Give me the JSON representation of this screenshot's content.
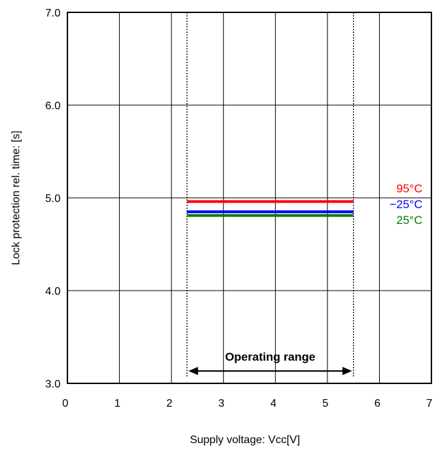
{
  "chart_data": {
    "type": "line",
    "title": "",
    "xlabel": "Supply voltage: Vcc[V]",
    "ylabel": "Lock protection rel. time: [s]",
    "xlim": [
      0,
      7
    ],
    "ylim": [
      3.0,
      7.0
    ],
    "x_ticks": [
      "0",
      "1",
      "2",
      "3",
      "4",
      "5",
      "6",
      "7"
    ],
    "y_ticks": [
      "3.0",
      "4.0",
      "5.0",
      "6.0",
      "7.0"
    ],
    "grid": true,
    "series": [
      {
        "name": "95°C",
        "color": "#ff0000",
        "x": [
          2.3,
          5.5
        ],
        "y": [
          4.96,
          4.96
        ]
      },
      {
        "name": "−25°C",
        "color": "#0000ff",
        "x": [
          2.3,
          5.5
        ],
        "y": [
          4.85,
          4.85
        ]
      },
      {
        "name": "25°C",
        "color": "#008000",
        "x": [
          2.3,
          5.5
        ],
        "y": [
          4.81,
          4.81
        ]
      }
    ],
    "operating_range": {
      "label": "Operating range",
      "x": [
        2.3,
        5.5
      ]
    }
  }
}
